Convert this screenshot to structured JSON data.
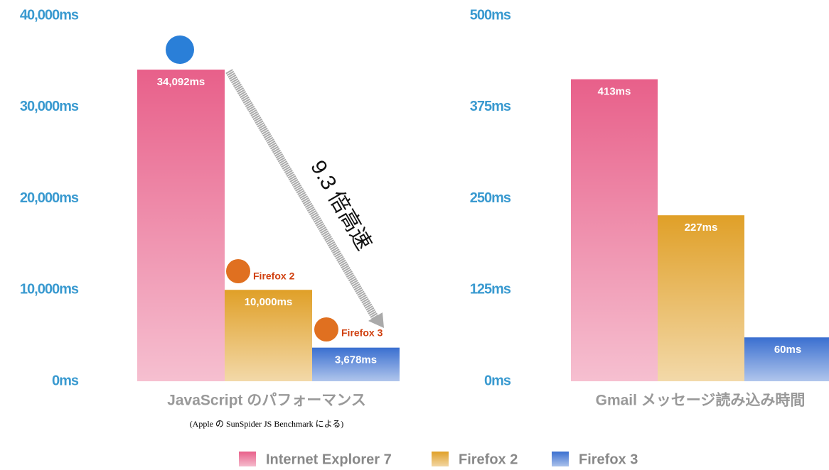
{
  "chart_data": [
    {
      "type": "bar",
      "x_label": "JavaScript のパフォーマンス",
      "subtitle": "(Apple の SunSpider JS Benchmark による)",
      "annotation": "9.3 倍高速",
      "logo_labels": [
        "Firefox 2",
        "Firefox 3"
      ],
      "series": [
        {
          "name": "Internet Explorer 7",
          "color": "#e8608a",
          "values": [
            34092
          ],
          "value_labels": [
            "34,092ms"
          ]
        },
        {
          "name": "Firefox 2",
          "color": "#e0a028",
          "values": [
            10000
          ],
          "value_labels": [
            "10,000ms"
          ]
        },
        {
          "name": "Firefox 3",
          "color": "#3a6fd0",
          "values": [
            3678
          ],
          "value_labels": [
            "3,678ms"
          ]
        }
      ],
      "ylim": [
        0,
        40000
      ],
      "yticks": [
        {
          "value": 0,
          "label": "0ms"
        },
        {
          "value": 10000,
          "label": "10,000ms"
        },
        {
          "value": 20000,
          "label": "20,000ms"
        },
        {
          "value": 30000,
          "label": "30,000ms"
        },
        {
          "value": 40000,
          "label": "40,000ms"
        }
      ]
    },
    {
      "type": "bar",
      "x_label": "Gmail メッセージ読み込み時間",
      "series": [
        {
          "color": "#e8608a",
          "values": [
            413
          ],
          "value_labels": [
            "413ms"
          ]
        },
        {
          "color": "#e0a028",
          "values": [
            227
          ],
          "value_labels": [
            "227ms"
          ]
        },
        {
          "color": "#3a6fd0",
          "values": [
            60
          ],
          "value_labels": [
            "60ms"
          ]
        }
      ],
      "ylim": [
        0,
        500
      ],
      "yticks": [
        {
          "value": 0,
          "label": "0ms"
        },
        {
          "value": 125,
          "label": "125ms"
        },
        {
          "value": 250,
          "label": "250ms"
        },
        {
          "value": 375,
          "label": "375ms"
        },
        {
          "value": 500,
          "label": "500ms"
        }
      ]
    }
  ]
}
